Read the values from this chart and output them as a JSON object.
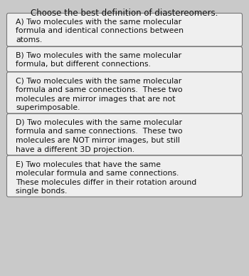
{
  "title": "Choose the best definition of diastereomers.",
  "title_fontsize": 8.5,
  "background_color": "#c9c9c9",
  "box_color": "#efefef",
  "box_edge_color": "#777777",
  "text_color": "#111111",
  "text_fontsize": 7.8,
  "options": [
    {
      "label": "A) Two molecules with the same molecular\nformula and identical connections between\natoms.",
      "lines": 3
    },
    {
      "label": "B) Two molecules with the same molecular\nformula, but different connections.",
      "lines": 2
    },
    {
      "label": "C) Two molecules with the same molecular\nformula and same connections.  These two\nmolecules are mirror images that are not\nsuperimposable.",
      "lines": 4
    },
    {
      "label": "D) Two molecules with the same molecular\nformula and same connections.  These two\nmolecules are NOT mirror images, but still\nhave a different 3D projection.",
      "lines": 4
    },
    {
      "label": "E) Two molecules that have the same\nmolecular formula and same connections.\nThese molecules differ in their rotation around\nsingle bonds.",
      "lines": 4
    }
  ],
  "fig_width": 3.5,
  "fig_height": 3.87,
  "dpi": 100
}
